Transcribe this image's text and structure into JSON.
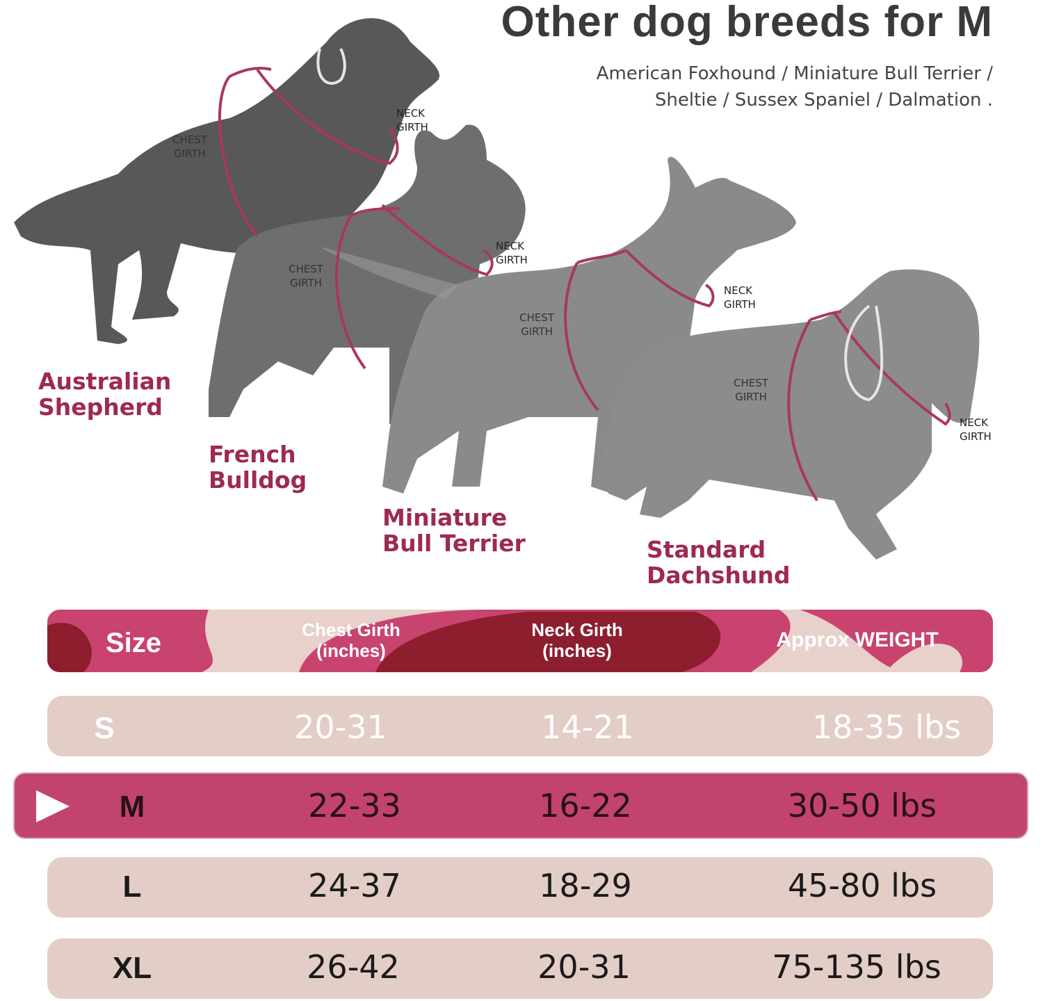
{
  "header": {
    "title": "Other dog breeds for M",
    "subtitle_lines": [
      "American Foxhound / Miniature Bull Terrier /",
      "Sheltie / Sussex Spaniel / Dalmation ."
    ]
  },
  "dogs": [
    {
      "name": [
        "Australian",
        "Shepherd"
      ],
      "chest": [
        "CHEST",
        "GIRTH"
      ],
      "neck": [
        "NECK",
        "GIRTH"
      ]
    },
    {
      "name": [
        "French",
        "Bulldog"
      ],
      "chest": [
        "CHEST",
        "GIRTH"
      ],
      "neck": [
        "NECK",
        "GIRTH"
      ]
    },
    {
      "name": [
        "Miniature",
        "Bull Terrier"
      ],
      "chest": [
        "CHEST",
        "GIRTH"
      ],
      "neck": [
        "NECK",
        "GIRTH"
      ]
    },
    {
      "name": [
        "Standard",
        "Dachshund"
      ],
      "chest": [
        "CHEST",
        "GIRTH"
      ],
      "neck": [
        "NECK",
        "GIRTH"
      ]
    }
  ],
  "table": {
    "header": [
      [
        "Size"
      ],
      [
        "Chest Girth",
        "(inches)"
      ],
      [
        "Neck Girth",
        "(inches)"
      ],
      [
        "Approx WEIGHT"
      ]
    ],
    "rows": [
      [
        "S",
        "20-31",
        "14-21",
        "18-35 lbs"
      ],
      [
        "M",
        "22-33",
        "16-22",
        "30-50 lbs"
      ],
      [
        "L",
        "24-37",
        "18-29",
        "45-80 lbs"
      ],
      [
        "XL",
        "26-42",
        "20-31",
        "75-135 lbs"
      ]
    ]
  }
}
